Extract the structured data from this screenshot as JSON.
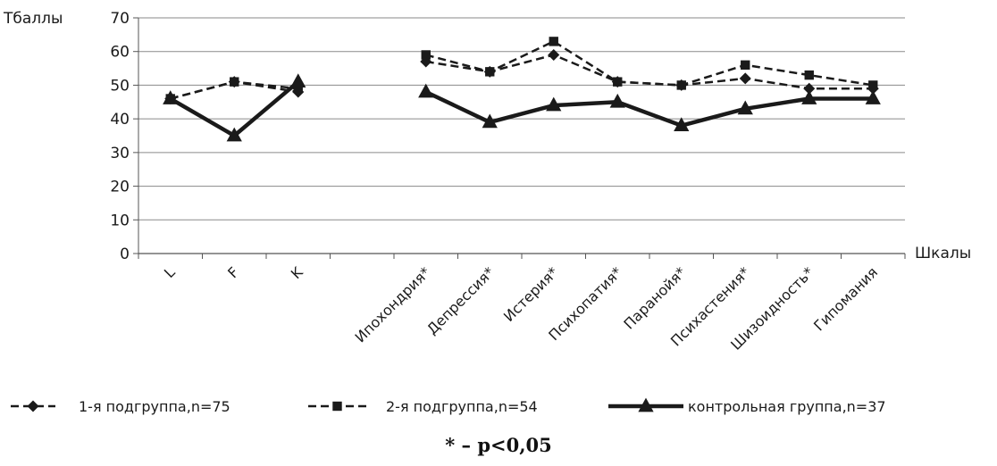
{
  "chart_data": {
    "type": "line",
    "title": "",
    "ylabel": "Тбаллы",
    "xlabel": "Шкалы",
    "ylim": [
      0,
      70
    ],
    "yticks": [
      0,
      10,
      20,
      30,
      40,
      50,
      60,
      70
    ],
    "grid": "horizontal",
    "legend_position": "bottom",
    "categories": [
      "L",
      "F",
      "K",
      "",
      "Ипохондрия*",
      "Депрессия*",
      "Истерия*",
      "Психопатия*",
      "Паранойя*",
      "Психастения*",
      "Шизоидность*",
      "Гипомания"
    ],
    "series": [
      {
        "name": "1-я подгруппа,n=75",
        "values": [
          46,
          51,
          48,
          null,
          57,
          54,
          59,
          51,
          50,
          52,
          49,
          49
        ],
        "marker": "diamond",
        "dash": "dashed",
        "color": "#1a1a1a"
      },
      {
        "name": "2-я подгруппа,n=54",
        "values": [
          46,
          51,
          49,
          null,
          59,
          54,
          63,
          51,
          50,
          56,
          53,
          50
        ],
        "marker": "square",
        "dash": "dashed",
        "color": "#1a1a1a"
      },
      {
        "name": "контрольная группа,n=37",
        "values": [
          46,
          35,
          51,
          null,
          48,
          39,
          44,
          45,
          38,
          43,
          46,
          46
        ],
        "marker": "triangle",
        "dash": "solid",
        "color": "#1a1a1a"
      }
    ]
  },
  "footnote": "* – p<0,05"
}
